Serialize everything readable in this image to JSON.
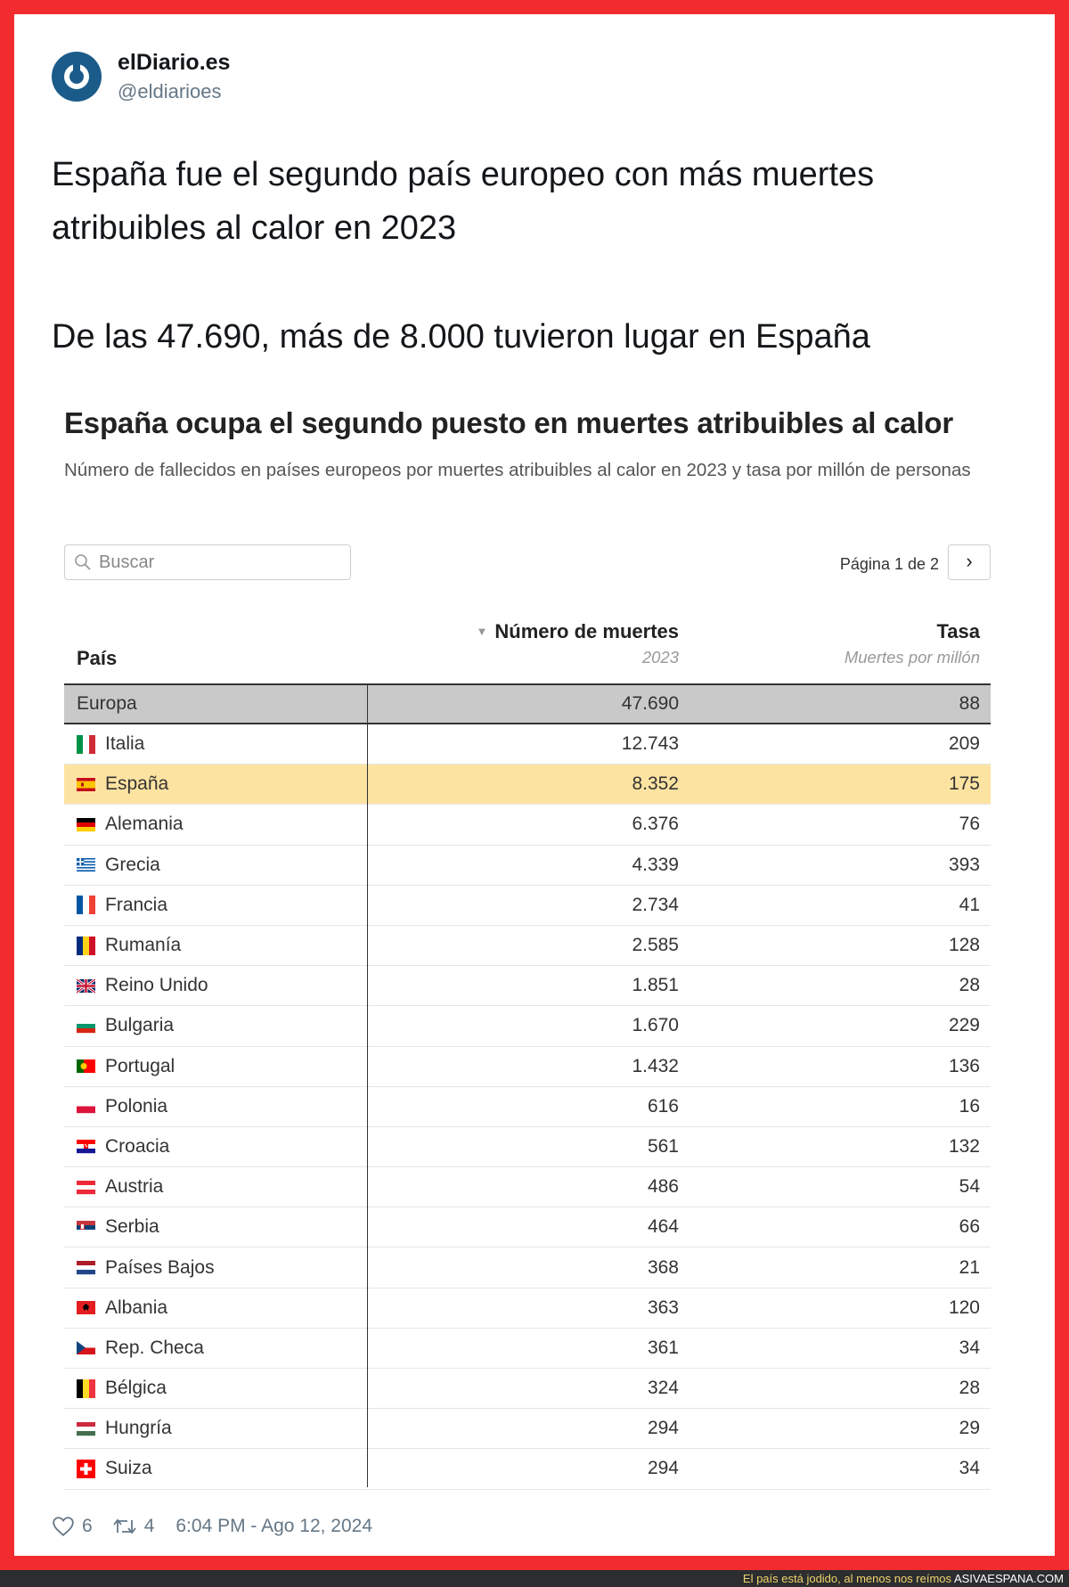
{
  "tweet": {
    "author_name": "elDiario.es",
    "author_handle": "@eldiarioes",
    "text_line1": "España fue el segundo país europeo con más muertes atribuibles al calor en 2023",
    "text_line2": "De las 47.690, más de 8.000 tuvieron lugar en España",
    "likes": "6",
    "retweets": "4",
    "timestamp": "6:04 PM - Ago 12, 2024"
  },
  "embed": {
    "title": "España ocupa el segundo puesto en muertes atribuibles al calor",
    "subtitle": "Número de fallecidos en países europeos por muertes atribuibles al calor en 2023 y tasa por millón de personas",
    "search_placeholder": "Buscar",
    "pager_text": "Página 1 de 2",
    "pager_next": "›",
    "headers": {
      "country": "País",
      "deaths": "Número de muertes",
      "deaths_sub": "2023",
      "rate": "Tasa",
      "rate_sub": "Muertes por millón"
    },
    "total": {
      "name": "Europa",
      "deaths": "47.690",
      "rate": "88"
    },
    "rows": [
      {
        "name": "Italia",
        "deaths": "12.743",
        "rate": "209",
        "flag": "it"
      },
      {
        "name": "España",
        "deaths": "8.352",
        "rate": "175",
        "flag": "es"
      },
      {
        "name": "Alemania",
        "deaths": "6.376",
        "rate": "76",
        "flag": "de"
      },
      {
        "name": "Grecia",
        "deaths": "4.339",
        "rate": "393",
        "flag": "gr"
      },
      {
        "name": "Francia",
        "deaths": "2.734",
        "rate": "41",
        "flag": "fr"
      },
      {
        "name": "Rumanía",
        "deaths": "2.585",
        "rate": "128",
        "flag": "ro"
      },
      {
        "name": "Reino Unido",
        "deaths": "1.851",
        "rate": "28",
        "flag": "gb"
      },
      {
        "name": "Bulgaria",
        "deaths": "1.670",
        "rate": "229",
        "flag": "bg"
      },
      {
        "name": "Portugal",
        "deaths": "1.432",
        "rate": "136",
        "flag": "pt"
      },
      {
        "name": "Polonia",
        "deaths": "616",
        "rate": "16",
        "flag": "pl"
      },
      {
        "name": "Croacia",
        "deaths": "561",
        "rate": "132",
        "flag": "hr"
      },
      {
        "name": "Austria",
        "deaths": "486",
        "rate": "54",
        "flag": "at"
      },
      {
        "name": "Serbia",
        "deaths": "464",
        "rate": "66",
        "flag": "rs"
      },
      {
        "name": "Países Bajos",
        "deaths": "368",
        "rate": "21",
        "flag": "nl"
      },
      {
        "name": "Albania",
        "deaths": "363",
        "rate": "120",
        "flag": "al"
      },
      {
        "name": "Rep. Checa",
        "deaths": "361",
        "rate": "34",
        "flag": "cz"
      },
      {
        "name": "Bélgica",
        "deaths": "324",
        "rate": "28",
        "flag": "be"
      },
      {
        "name": "Hungría",
        "deaths": "294",
        "rate": "29",
        "flag": "hu"
      },
      {
        "name": "Suiza",
        "deaths": "294",
        "rate": "34",
        "flag": "ch"
      }
    ]
  },
  "watermark": {
    "caption": "El país está jodido, al menos nos reímos",
    "site": "ASIVAESPANA.COM"
  },
  "colors": {
    "frame": "#f22c2e",
    "highlight_row": "#fde3a1",
    "total_row": "#c9c9c9",
    "avatar": "#1a5b8a"
  }
}
